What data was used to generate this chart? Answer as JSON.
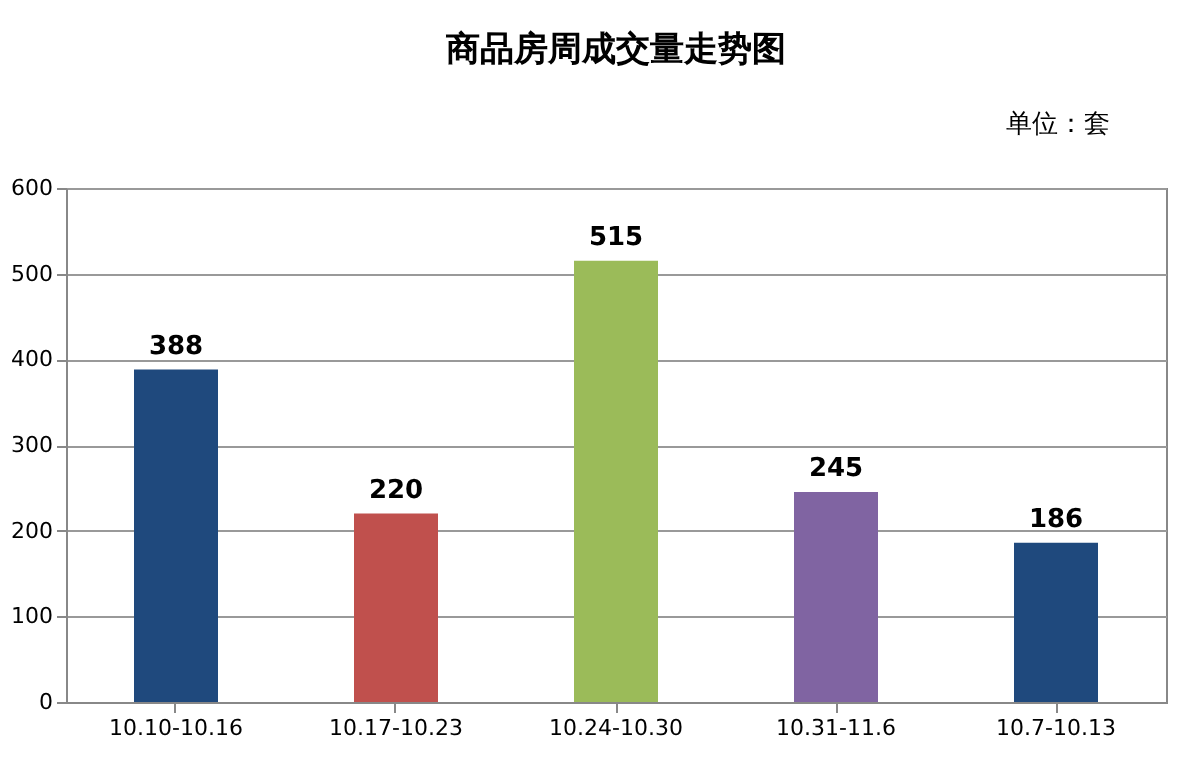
{
  "chart_data": {
    "type": "bar",
    "title": "商品房周成交量走势图",
    "annotations": [
      "单位：套"
    ],
    "categories": [
      "10.10-10.16",
      "10.17-10.23",
      "10.24-10.30",
      "10.31-11.6",
      "10.7-10.13"
    ],
    "values": [
      388,
      220,
      515,
      245,
      186
    ],
    "colors": [
      "#1f497d",
      "#c0504d",
      "#9bbb59",
      "#8064a2",
      "#1f497d"
    ],
    "ylim": [
      0,
      600
    ],
    "yticks": [
      0,
      100,
      200,
      300,
      400,
      500,
      600
    ],
    "grid": "y",
    "data_labels": true
  }
}
